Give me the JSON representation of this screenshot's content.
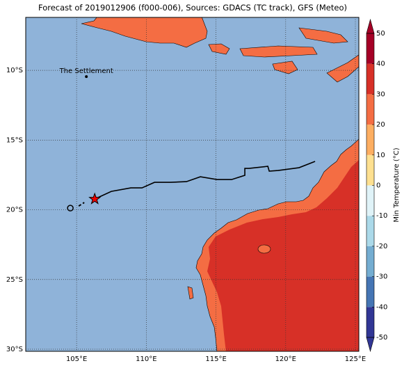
{
  "map": {
    "title": "Forecast of 2019012906 (f000-006), Sources: GDACS (TC track), GFS (Meteo)",
    "xlim": [
      101.35,
      125.25
    ],
    "ylim": [
      -6.2,
      -30.15
    ],
    "xticks": [
      {
        "value": 105,
        "label": "105°E"
      },
      {
        "value": 110,
        "label": "110°E"
      },
      {
        "value": 115,
        "label": "115°E"
      },
      {
        "value": 120,
        "label": "120°E"
      },
      {
        "value": 125,
        "label": "125°E"
      }
    ],
    "yticks": [
      {
        "value": -10,
        "label": "10°S"
      },
      {
        "value": -15,
        "label": "15°S"
      },
      {
        "value": -20,
        "label": "20°S"
      },
      {
        "value": -25,
        "label": "25°S"
      },
      {
        "value": -30,
        "label": "30°S"
      }
    ],
    "grid": true,
    "annotations": [
      {
        "text": "The Settlement",
        "lon": 105.7,
        "lat": -10.45
      }
    ],
    "track": {
      "lon": [
        106.3,
        107.49,
        108.89,
        109.69,
        110.59,
        111.73,
        112.88,
        113.88,
        115.07,
        116.12,
        117.07,
        117.07,
        117.37,
        118.72,
        118.82,
        119.46,
        120.96,
        122.11
      ],
      "lat": [
        -19.23,
        -18.68,
        -18.43,
        -18.43,
        -18.03,
        -18.03,
        -17.98,
        -17.63,
        -17.83,
        -17.83,
        -17.53,
        -17.03,
        -17.03,
        -16.88,
        -17.23,
        -17.18,
        -16.98,
        -16.53
      ]
    },
    "forecast": {
      "lon": [
        105.15,
        105.55
      ],
      "lat": [
        -19.73,
        -19.48
      ]
    },
    "forecast_end": {
      "lon": 104.55,
      "lat": -19.88
    },
    "current": {
      "lon": 106.3,
      "lat": -19.23
    }
  },
  "colorbar": {
    "label": "Min Temperature (°C)",
    "range": [
      -50,
      50
    ],
    "ticks": [
      -50,
      -40,
      -30,
      -20,
      -10,
      0,
      10,
      20,
      30,
      40,
      50
    ],
    "colors": [
      "#313695",
      "#4575b4",
      "#74add1",
      "#abd9e9",
      "#e0f3f8",
      "#fee090",
      "#fdae61",
      "#f46d43",
      "#d73027",
      "#a50026"
    ]
  }
}
